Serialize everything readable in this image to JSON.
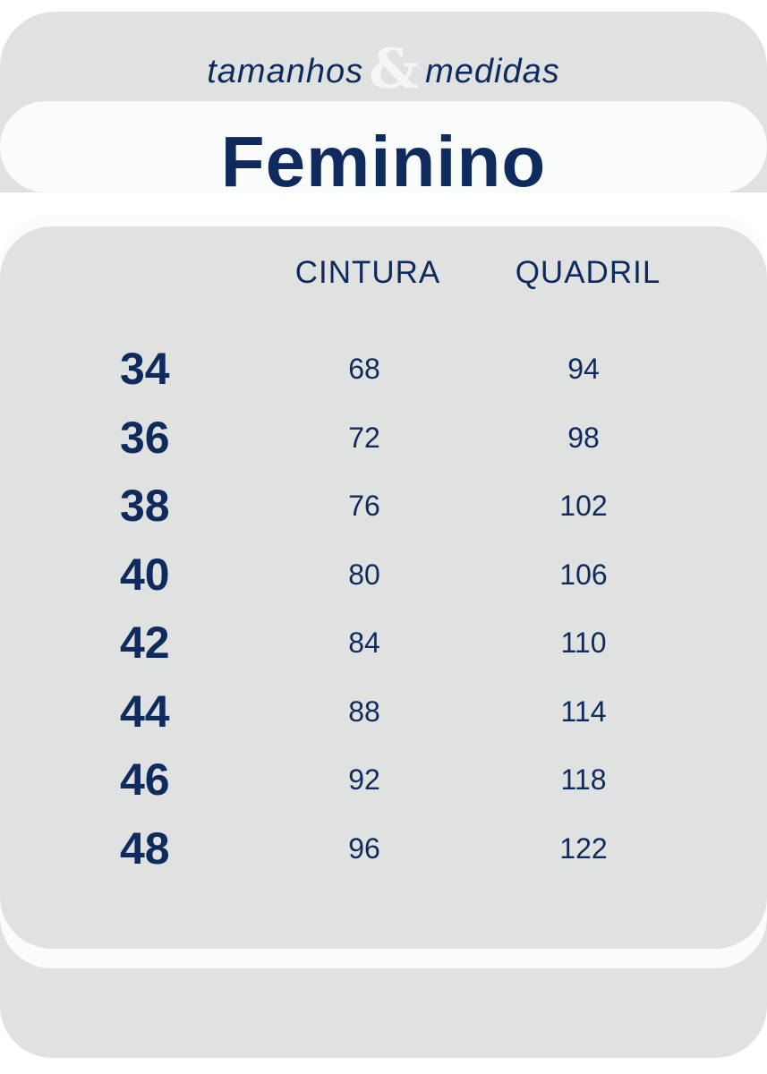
{
  "header": {
    "subtitle_left": "tamanhos",
    "subtitle_amp": "&",
    "subtitle_right": "medidas",
    "title": "Feminino"
  },
  "table": {
    "columns": [
      "CINTURA",
      "QUADRIL"
    ],
    "rows": [
      {
        "size": "34",
        "cintura": "68",
        "quadril": "94"
      },
      {
        "size": "36",
        "cintura": "72",
        "quadril": "98"
      },
      {
        "size": "38",
        "cintura": "76",
        "quadril": "102"
      },
      {
        "size": "40",
        "cintura": "80",
        "quadril": "106"
      },
      {
        "size": "42",
        "cintura": "84",
        "quadril": "110"
      },
      {
        "size": "44",
        "cintura": "88",
        "quadril": "114"
      },
      {
        "size": "46",
        "cintura": "92",
        "quadril": "118"
      },
      {
        "size": "48",
        "cintura": "96",
        "quadril": "122"
      }
    ]
  },
  "colors": {
    "navy": "#0f2a5c",
    "gray": "#e0e2e2",
    "white": "#fafbfb"
  }
}
